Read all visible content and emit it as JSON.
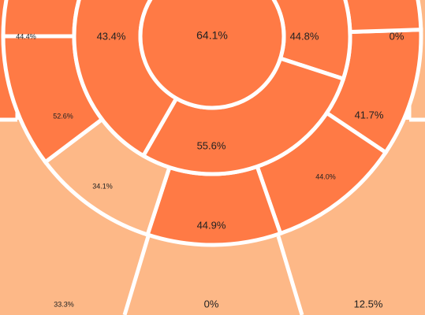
{
  "chart_data": {
    "type": "sunburst",
    "center": {
      "label": "64.1%"
    },
    "rings": [
      {
        "level": 1,
        "segments": [
          {
            "label": "44.8%",
            "start": 0,
            "end": 0.3
          },
          {
            "label": "55.6%",
            "start": 0.3,
            "end": 0.583
          },
          {
            "label": "43.4%",
            "start": 0.583,
            "end": 1.0
          }
        ]
      },
      {
        "level": 2,
        "segments": [
          {
            "label": "41.7%",
            "start": 0.245,
            "end": 0.344,
            "shade": "dark"
          },
          {
            "label": "44.0%",
            "start": 0.344,
            "end": 0.447,
            "shade": "dark"
          },
          {
            "label": "44.9%",
            "start": 0.447,
            "end": 0.55,
            "shade": "dark"
          },
          {
            "label": "34.1%",
            "start": 0.55,
            "end": 0.647,
            "shade": "light"
          },
          {
            "label": "52.6%",
            "start": 0.647,
            "end": 0.75,
            "shade": "dark"
          }
        ]
      },
      {
        "level": 3,
        "cells": [
          {
            "label": "44.4%",
            "shade": "dark"
          },
          {
            "label": "0%",
            "shade": "light"
          },
          {
            "label": "33.3%",
            "shade": "light"
          },
          {
            "label": "0%",
            "shade": "light"
          },
          {
            "label": "12.5%",
            "shade": "light"
          }
        ]
      }
    ]
  },
  "colors": {
    "dark": "#ff7a45",
    "light": "#fdb887",
    "border": "#ffffff",
    "text": "#222222"
  }
}
